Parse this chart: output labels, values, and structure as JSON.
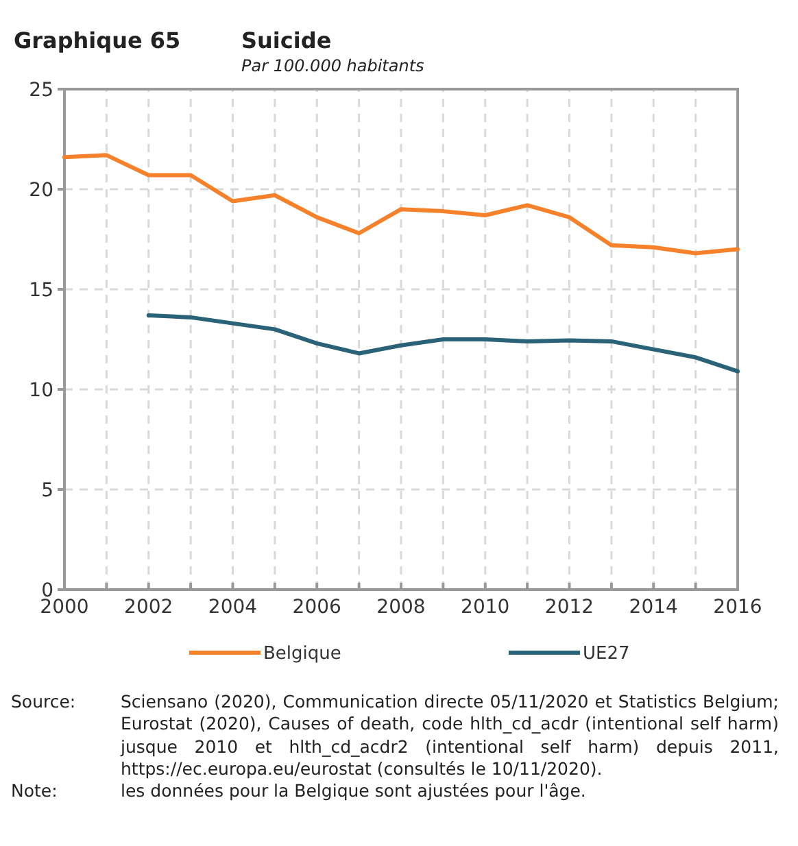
{
  "chart_data": {
    "type": "line",
    "title": "Suicide",
    "subtitle": "Par 100.000 habitants",
    "x": [
      2000,
      2001,
      2002,
      2003,
      2004,
      2005,
      2006,
      2007,
      2008,
      2009,
      2010,
      2011,
      2012,
      2013,
      2014,
      2015,
      2016
    ],
    "series": [
      {
        "name": "Belgique",
        "color": "#f5822a",
        "values": [
          21.6,
          21.7,
          20.7,
          20.7,
          19.4,
          19.7,
          18.6,
          17.8,
          19.0,
          18.9,
          18.7,
          19.2,
          18.6,
          17.2,
          17.1,
          16.8,
          17.0
        ]
      },
      {
        "name": "UE27",
        "color": "#2a6278",
        "values": [
          null,
          null,
          13.7,
          13.6,
          13.3,
          13.0,
          12.3,
          11.8,
          12.2,
          12.5,
          12.5,
          12.4,
          12.45,
          12.4,
          12.0,
          11.6,
          10.9
        ]
      }
    ],
    "xlim": [
      2000,
      2016
    ],
    "xticks": [
      2000,
      {
        "value": 2001,
        "label": null
      },
      2002,
      {
        "value": 2003,
        "label": null
      },
      2004,
      {
        "value": 2005,
        "label": null
      },
      2006,
      {
        "value": 2007,
        "label": null
      },
      2008,
      {
        "value": 2009,
        "label": null
      },
      2010,
      {
        "value": 2011,
        "label": null
      },
      2012,
      {
        "value": 2013,
        "label": null
      },
      2014,
      {
        "value": 2015,
        "label": null
      },
      2016
    ],
    "ylim": [
      0,
      25
    ],
    "yticks": [
      0,
      5,
      10,
      15,
      20,
      25
    ],
    "grid": true,
    "legend": "bottom",
    "marker": "none",
    "line_style": "solid",
    "annotations": [
      "Graphique 65",
      "Source: Sciensano (2020), Communication directe 05/11/2020 et Statistics Belgium; Eurostat (2020), Causes of death, code hlth_cd_acdr (intentional self harm) jusque 2010 et hlth_cd_acdr2 (intentional self harm) depuis 2011, https://ec.europa.eu/eurostat (consultés le 10/11/2020).",
      "Note: les données pour la Belgique sont ajustées pour l'âge."
    ]
  }
}
